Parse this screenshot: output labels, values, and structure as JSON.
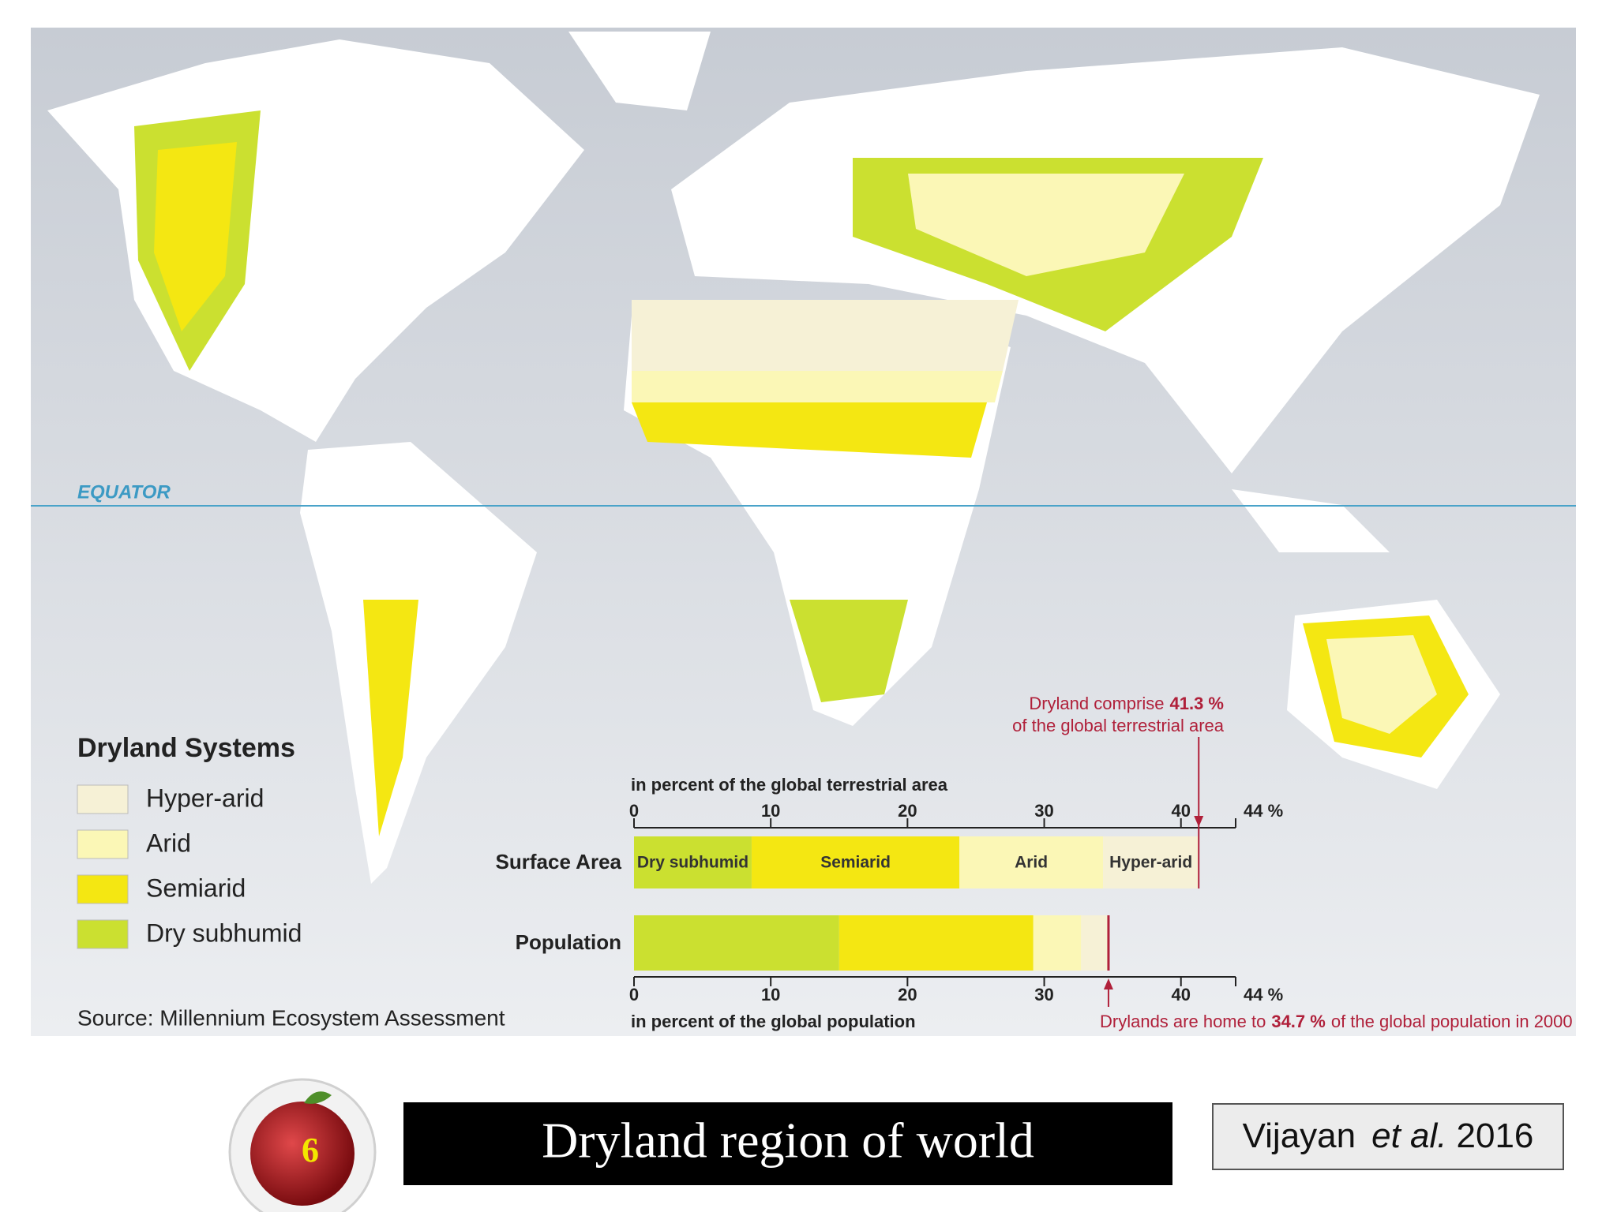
{
  "map": {
    "equator_label": "EQUATOR",
    "legend_title": "Dryland Systems",
    "source": "Source: Millennium Ecosystem Assessment"
  },
  "chart_data": {
    "type": "stacked-bar-horizontal",
    "categories": [
      "Surface Area",
      "Population"
    ],
    "series": [
      {
        "name": "Dry subhumid",
        "color": "#cbe030",
        "values": [
          8.6,
          15.0
        ]
      },
      {
        "name": "Semiarid",
        "color": "#f4e712",
        "values": [
          15.2,
          14.2
        ]
      },
      {
        "name": "Arid",
        "color": "#fbf7b6",
        "values": [
          10.5,
          3.5
        ]
      },
      {
        "name": "Hyper-arid",
        "color": "#f6f1d6",
        "values": [
          7.0,
          2.0
        ]
      }
    ],
    "top_axis_label": "in percent of the global terrestrial area",
    "bottom_axis_label": "in percent of the global population",
    "xlim": [
      0,
      44
    ],
    "xticks": [
      0,
      10,
      20,
      30,
      40,
      {
        "value": 44,
        "label": "44 %"
      }
    ],
    "annotations": [
      {
        "text_before": "Dryland comprise",
        "value": 41.3,
        "value_label": "41.3 %",
        "text_after": "of the global terrestrial area"
      },
      {
        "text_before": "Drylands are home to",
        "value": 34.7,
        "value_label": "34.7 %",
        "text_after": "of the global population in 2000"
      }
    ]
  },
  "footer": {
    "slide_number": "6",
    "title": "Dryland region of world",
    "citation_author": "Vijayan",
    "citation_etal": "et al.",
    "citation_year": "2016"
  }
}
